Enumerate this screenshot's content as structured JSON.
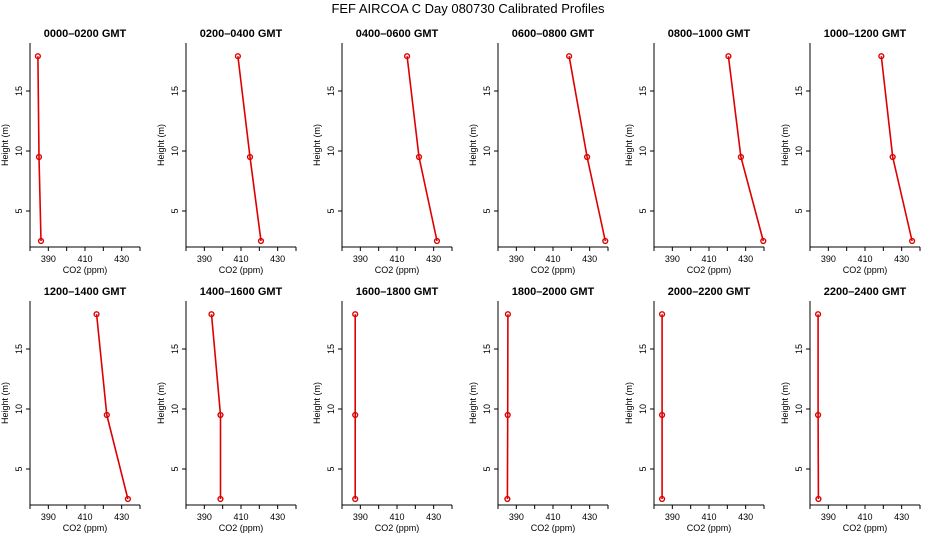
{
  "figure": {
    "title": "FEF AIRCOA C  Day 080730  Calibrated Profiles"
  },
  "colors": {
    "series": "#dd0000",
    "axis": "#000000",
    "background": "#ffffff"
  },
  "chart_data": [
    {
      "type": "line",
      "title": "0000–0200 GMT",
      "xlabel": "CO2 (ppm)",
      "ylabel": "Height (m)",
      "xlim": [
        380,
        440
      ],
      "ylim": [
        2,
        19
      ],
      "xticks": [
        390,
        410,
        430
      ],
      "yticks": [
        5,
        10,
        15
      ],
      "series": [
        {
          "x": [
            386.0,
            384.9,
            384.3
          ],
          "y": [
            2.5,
            9.5,
            17.9
          ]
        }
      ]
    },
    {
      "type": "line",
      "title": "0200–0400 GMT",
      "xlabel": "CO2 (ppm)",
      "ylabel": "Height (m)",
      "xlim": [
        380,
        440
      ],
      "ylim": [
        2,
        19
      ],
      "xticks": [
        390,
        410,
        430
      ],
      "yticks": [
        5,
        10,
        15
      ],
      "series": [
        {
          "x": [
            420.9,
            414.9,
            408.3
          ],
          "y": [
            2.5,
            9.5,
            17.9
          ]
        }
      ]
    },
    {
      "type": "line",
      "title": "0400–0600 GMT",
      "xlabel": "CO2 (ppm)",
      "ylabel": "Height (m)",
      "xlim": [
        380,
        440
      ],
      "ylim": [
        2,
        19
      ],
      "xticks": [
        390,
        410,
        430
      ],
      "yticks": [
        5,
        10,
        15
      ],
      "series": [
        {
          "x": [
            431.8,
            422.0,
            415.5
          ],
          "y": [
            2.5,
            9.5,
            17.9
          ]
        }
      ]
    },
    {
      "type": "line",
      "title": "0600–0800 GMT",
      "xlabel": "CO2 (ppm)",
      "ylabel": "Height (m)",
      "xlim": [
        380,
        440
      ],
      "ylim": [
        2,
        19
      ],
      "xticks": [
        390,
        410,
        430
      ],
      "yticks": [
        5,
        10,
        15
      ],
      "series": [
        {
          "x": [
            438.5,
            428.6,
            418.8
          ],
          "y": [
            2.5,
            9.5,
            17.9
          ]
        }
      ]
    },
    {
      "type": "line",
      "title": "0800–1000 GMT",
      "xlabel": "CO2 (ppm)",
      "ylabel": "Height (m)",
      "xlim": [
        380,
        440
      ],
      "ylim": [
        2,
        19
      ],
      "xticks": [
        390,
        410,
        430
      ],
      "yticks": [
        5,
        10,
        15
      ],
      "series": [
        {
          "x": [
            439.6,
            427.4,
            420.6
          ],
          "y": [
            2.5,
            9.5,
            17.9
          ]
        }
      ]
    },
    {
      "type": "line",
      "title": "1000–1200 GMT",
      "xlabel": "CO2 (ppm)",
      "ylabel": "Height (m)",
      "xlim": [
        380,
        440
      ],
      "ylim": [
        2,
        19
      ],
      "xticks": [
        390,
        410,
        430
      ],
      "yticks": [
        5,
        10,
        15
      ],
      "series": [
        {
          "x": [
            435.7,
            425.1,
            418.9
          ],
          "y": [
            2.5,
            9.5,
            17.9
          ]
        }
      ]
    },
    {
      "type": "line",
      "title": "1200–1400 GMT",
      "xlabel": "CO2 (ppm)",
      "ylabel": "Height (m)",
      "xlim": [
        380,
        440
      ],
      "ylim": [
        2,
        19
      ],
      "xticks": [
        390,
        410,
        430
      ],
      "yticks": [
        5,
        10,
        15
      ],
      "series": [
        {
          "x": [
            433.4,
            421.9,
            416.3
          ],
          "y": [
            2.5,
            9.5,
            17.9
          ]
        }
      ]
    },
    {
      "type": "line",
      "title": "1400–1600 GMT",
      "xlabel": "CO2 (ppm)",
      "ylabel": "Height (m)",
      "xlim": [
        380,
        440
      ],
      "ylim": [
        2,
        19
      ],
      "xticks": [
        390,
        410,
        430
      ],
      "yticks": [
        5,
        10,
        15
      ],
      "series": [
        {
          "x": [
            398.8,
            398.8,
            393.9
          ],
          "y": [
            2.5,
            9.5,
            17.9
          ]
        }
      ]
    },
    {
      "type": "line",
      "title": "1600–1800 GMT",
      "xlabel": "CO2 (ppm)",
      "ylabel": "Height (m)",
      "xlim": [
        380,
        440
      ],
      "ylim": [
        2,
        19
      ],
      "xticks": [
        390,
        410,
        430
      ],
      "yticks": [
        5,
        10,
        15
      ],
      "series": [
        {
          "x": [
            387.2,
            387.2,
            387.2
          ],
          "y": [
            2.5,
            9.5,
            17.9
          ]
        }
      ]
    },
    {
      "type": "line",
      "title": "1800–2000 GMT",
      "xlabel": "CO2 (ppm)",
      "ylabel": "Height (m)",
      "xlim": [
        380,
        440
      ],
      "ylim": [
        2,
        19
      ],
      "xticks": [
        390,
        410,
        430
      ],
      "yticks": [
        5,
        10,
        15
      ],
      "series": [
        {
          "x": [
            385.1,
            385.3,
            385.4
          ],
          "y": [
            2.5,
            9.5,
            17.9
          ]
        }
      ]
    },
    {
      "type": "line",
      "title": "2000–2200 GMT",
      "xlabel": "CO2 (ppm)",
      "ylabel": "Height (m)",
      "xlim": [
        380,
        440
      ],
      "ylim": [
        2,
        19
      ],
      "xticks": [
        390,
        410,
        430
      ],
      "yticks": [
        5,
        10,
        15
      ],
      "series": [
        {
          "x": [
            384.4,
            384.4,
            384.4
          ],
          "y": [
            2.5,
            9.5,
            17.9
          ]
        }
      ]
    },
    {
      "type": "line",
      "title": "2200–2400 GMT",
      "xlabel": "CO2 (ppm)",
      "ylabel": "Height (m)",
      "xlim": [
        380,
        440
      ],
      "ylim": [
        2,
        19
      ],
      "xticks": [
        390,
        410,
        430
      ],
      "yticks": [
        5,
        10,
        15
      ],
      "series": [
        {
          "x": [
            384.6,
            384.4,
            384.4
          ],
          "y": [
            2.5,
            9.5,
            17.9
          ]
        }
      ]
    }
  ]
}
